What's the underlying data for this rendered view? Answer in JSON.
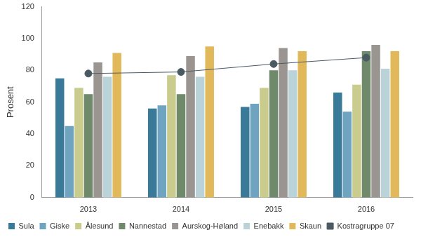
{
  "chart_data": {
    "type": "bar",
    "categories": [
      "2013",
      "2014",
      "2015",
      "2016"
    ],
    "series": [
      {
        "name": "Sula",
        "color": "#3a7a99",
        "values": [
          75,
          56,
          57,
          66
        ]
      },
      {
        "name": "Giske",
        "color": "#6fa4c0",
        "values": [
          45,
          58,
          59,
          54
        ]
      },
      {
        "name": "Ålesund",
        "color": "#c9cc8c",
        "values": [
          69,
          77,
          69,
          71
        ]
      },
      {
        "name": "Nannestad",
        "color": "#6f8a6a",
        "values": [
          65,
          65,
          80,
          92
        ]
      },
      {
        "name": "Aurskog-Høland",
        "color": "#9a9590",
        "values": [
          85,
          89,
          94,
          96
        ]
      },
      {
        "name": "Enebakk",
        "color": "#b9d3d8",
        "values": [
          76,
          76,
          80,
          81
        ]
      },
      {
        "name": "Skaun",
        "color": "#e2b95a",
        "values": [
          91,
          95,
          92,
          92
        ]
      },
      {
        "name": "Kostragruppe 07",
        "type": "line",
        "marker": "circle",
        "color": "#4a5a63",
        "values": [
          78,
          79,
          84,
          88
        ]
      }
    ],
    "y_label": "Prosent",
    "ylim": [
      0,
      120
    ],
    "yticks": [
      0,
      20,
      40,
      60,
      80,
      100,
      120
    ],
    "grid": false,
    "legend": "bottom-left"
  }
}
